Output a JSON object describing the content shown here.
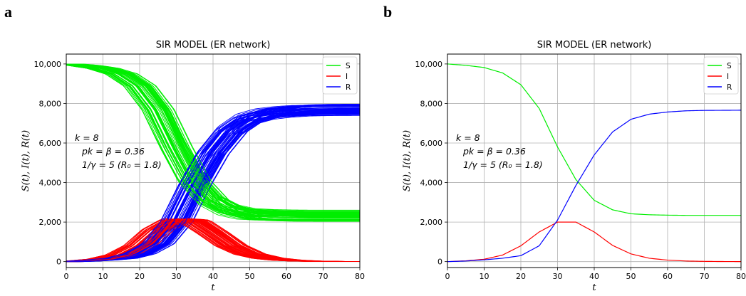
{
  "chart_data": [
    {
      "panel": "a",
      "type": "line",
      "title": "SIR MODEL (ER network)",
      "xlabel": "t",
      "ylabel": "S(t), I(t), R(t)",
      "xlim": [
        0,
        80
      ],
      "ylim": [
        -300,
        10500
      ],
      "xticks": [
        "0",
        "10",
        "20",
        "30",
        "40",
        "50",
        "60",
        "70",
        "80"
      ],
      "yticks": [
        "0",
        "2,000",
        "4,000",
        "6,000",
        "8,000",
        "10,000"
      ],
      "grid": true,
      "legend": {
        "position": "top-right",
        "entries": [
          {
            "name": "S",
            "color": "#00ee00"
          },
          {
            "name": "I",
            "color": "#ff0000"
          },
          {
            "name": "R",
            "color": "#0000ff"
          }
        ]
      },
      "annotation": {
        "line1": "k = 8",
        "line2": "pk = β = 0.36",
        "line3": "1/γ = 5 (R₀ = 1.8)"
      },
      "ensemble": {
        "runs": 60,
        "N": 10000,
        "S_final_range": [
          2150,
          2450
        ],
        "R_final_range": [
          7550,
          7850
        ],
        "I_peak_range": [
          2000,
          2350
        ],
        "peak_time_range": [
          25,
          39
        ]
      },
      "series": [
        {
          "name": "S",
          "color": "#00ee00",
          "x": [
            0,
            5,
            10,
            15,
            20,
            25,
            30,
            35,
            40,
            45,
            50,
            55,
            60,
            65,
            70,
            75,
            80
          ],
          "values": [
            10000,
            9920,
            9780,
            9500,
            8900,
            7700,
            5800,
            4100,
            3100,
            2620,
            2420,
            2370,
            2350,
            2340,
            2340,
            2340,
            2340
          ]
        },
        {
          "name": "I",
          "color": "#ff0000",
          "x": [
            0,
            5,
            10,
            15,
            20,
            25,
            30,
            35,
            40,
            45,
            50,
            55,
            60,
            65,
            70,
            75,
            80
          ],
          "values": [
            0,
            40,
            120,
            330,
            800,
            1600,
            2100,
            2050,
            1450,
            800,
            380,
            170,
            75,
            30,
            12,
            5,
            2
          ]
        },
        {
          "name": "R",
          "color": "#0000ff",
          "x": [
            0,
            5,
            10,
            15,
            20,
            25,
            30,
            35,
            40,
            45,
            50,
            55,
            60,
            65,
            70,
            75,
            80
          ],
          "values": [
            0,
            30,
            90,
            170,
            400,
            900,
            2000,
            3850,
            5450,
            6580,
            7200,
            7460,
            7570,
            7630,
            7650,
            7655,
            7658
          ]
        }
      ]
    },
    {
      "panel": "b",
      "type": "line",
      "title": "SIR MODEL (ER network)",
      "xlabel": "t",
      "ylabel": "S(t), I(t), R(t)",
      "xlim": [
        0,
        80
      ],
      "ylim": [
        -300,
        10500
      ],
      "xticks": [
        "0",
        "10",
        "20",
        "30",
        "40",
        "50",
        "60",
        "70",
        "80"
      ],
      "yticks": [
        "0",
        "2,000",
        "4,000",
        "6,000",
        "8,000",
        "10,000"
      ],
      "grid": true,
      "legend": {
        "position": "top-right",
        "entries": [
          {
            "name": "S",
            "color": "#00ee00"
          },
          {
            "name": "I",
            "color": "#ff0000"
          },
          {
            "name": "R",
            "color": "#0000ff"
          }
        ]
      },
      "annotation": {
        "line1": "k = 8",
        "line2": "pk = β = 0.36",
        "line3": "1/γ = 5 (R₀ = 1.8)"
      },
      "series": [
        {
          "name": "S",
          "color": "#00ee00",
          "x": [
            0,
            5,
            10,
            15,
            20,
            25,
            30,
            35,
            40,
            45,
            50,
            55,
            60,
            65,
            70,
            75,
            80
          ],
          "values": [
            10000,
            9930,
            9820,
            9550,
            8950,
            7750,
            5800,
            4150,
            3100,
            2620,
            2420,
            2370,
            2350,
            2340,
            2340,
            2340,
            2340
          ]
        },
        {
          "name": "I",
          "color": "#ff0000",
          "x": [
            0,
            5,
            10,
            15,
            20,
            25,
            30,
            35,
            40,
            45,
            50,
            55,
            60,
            65,
            70,
            75,
            80
          ],
          "values": [
            0,
            40,
            120,
            330,
            800,
            1500,
            2000,
            2000,
            1500,
            820,
            390,
            170,
            75,
            30,
            12,
            5,
            2
          ]
        },
        {
          "name": "R",
          "color": "#0000ff",
          "x": [
            0,
            5,
            10,
            15,
            20,
            25,
            30,
            35,
            40,
            45,
            50,
            55,
            60,
            65,
            70,
            75,
            80
          ],
          "values": [
            0,
            30,
            90,
            170,
            300,
            800,
            2100,
            3850,
            5400,
            6560,
            7200,
            7460,
            7570,
            7630,
            7650,
            7655,
            7660
          ]
        }
      ]
    }
  ]
}
